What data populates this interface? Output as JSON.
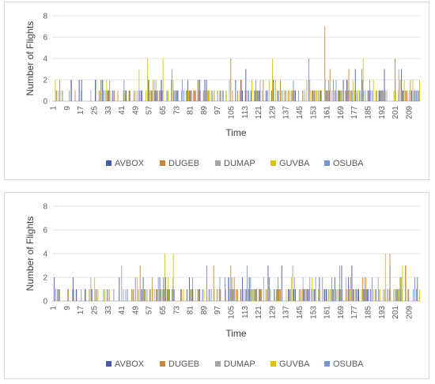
{
  "chart_data": [
    {
      "type": "bar",
      "title": "",
      "xlabel": "Time",
      "ylabel": "Number of Flights",
      "ylim": [
        0,
        8
      ],
      "yticks": [
        0,
        2,
        4,
        6,
        8
      ],
      "x_range": [
        1,
        215
      ],
      "xtick_labels": [
        "1",
        "9",
        "17",
        "25",
        "33",
        "41",
        "49",
        "57",
        "65",
        "73",
        "81",
        "89",
        "97",
        "105",
        "113",
        "121",
        "129",
        "137",
        "145",
        "153",
        "161",
        "169",
        "177",
        "185",
        "193",
        "201",
        "209"
      ],
      "grid": true,
      "legend_position": "bottom",
      "series": [
        {
          "name": "AVBOX",
          "color": "#4a5aa8"
        },
        {
          "name": "DUGEB",
          "color": "#c6893b"
        },
        {
          "name": "DUMAP",
          "color": "#a5a5a5"
        },
        {
          "name": "GUVBA",
          "color": "#d4c21a"
        },
        {
          "name": "OSUBA",
          "color": "#7a96cf"
        }
      ],
      "notable_values": [
        {
          "x": 56,
          "series": "GUVBA",
          "value": 4
        },
        {
          "x": 65,
          "series": "GUVBA",
          "value": 4
        },
        {
          "x": 105,
          "series": "DUGEB",
          "value": 4
        },
        {
          "x": 129,
          "series": "GUVBA",
          "value": 4
        },
        {
          "x": 150,
          "series": "OSUBA",
          "value": 4
        },
        {
          "x": 160,
          "series": "DUGEB",
          "value": 7
        },
        {
          "x": 182,
          "series": "GUVBA",
          "value": 4
        },
        {
          "x": 201,
          "series": "DUGEB",
          "value": 4
        }
      ]
    },
    {
      "type": "bar",
      "title": "",
      "xlabel": "Time",
      "ylabel": "Number of Flights",
      "ylim": [
        0,
        8
      ],
      "yticks": [
        0,
        2,
        4,
        6,
        8
      ],
      "x_range": [
        1,
        215
      ],
      "xtick_labels": [
        "1",
        "9",
        "17",
        "25",
        "33",
        "41",
        "49",
        "57",
        "65",
        "73",
        "81",
        "89",
        "97",
        "105",
        "113",
        "121",
        "129",
        "137",
        "145",
        "153",
        "161",
        "169",
        "177",
        "185",
        "193",
        "201",
        "209"
      ],
      "grid": true,
      "legend_position": "bottom",
      "series": [
        {
          "name": "AVBOX",
          "color": "#4a5aa8"
        },
        {
          "name": "DUGEB",
          "color": "#c6893b"
        },
        {
          "name": "DUMAP",
          "color": "#a5a5a5"
        },
        {
          "name": "GUVBA",
          "color": "#d4c21a"
        },
        {
          "name": "OSUBA",
          "color": "#7a96cf"
        }
      ],
      "notable_values": [
        {
          "x": 66,
          "series": "GUVBA",
          "value": 4
        },
        {
          "x": 71,
          "series": "GUVBA",
          "value": 4
        },
        {
          "x": 195,
          "series": "GUVBA",
          "value": 4
        },
        {
          "x": 198,
          "series": "DUGEB",
          "value": 4
        }
      ]
    }
  ]
}
